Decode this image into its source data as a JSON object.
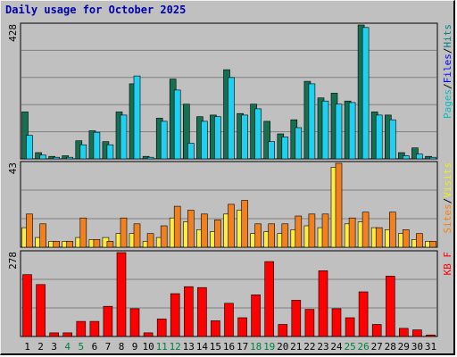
{
  "chart_data": {
    "type": "bar",
    "title": "Daily usage for October 2025",
    "month": "October 2025",
    "x": [
      "1",
      "2",
      "3",
      "4",
      "5",
      "6",
      "7",
      "8",
      "9",
      "10",
      "11",
      "12",
      "13",
      "14",
      "15",
      "16",
      "17",
      "18",
      "19",
      "20",
      "21",
      "22",
      "23",
      "24",
      "25",
      "26",
      "27",
      "28",
      "29",
      "30",
      "31"
    ],
    "weekend_days": [
      "4",
      "5",
      "11",
      "12",
      "18",
      "19",
      "25",
      "26"
    ],
    "panels": [
      {
        "name": "hits-files-pages",
        "ymax_label": "428",
        "ymax": 428,
        "ylabel_parts": [
          {
            "text": "Pages",
            "color": "#00c0c0"
          },
          {
            "text": "/",
            "color": "#000000"
          },
          {
            "text": "Files",
            "color": "#0000ff"
          },
          {
            "text": "/",
            "color": "#000000"
          },
          {
            "text": "Hits",
            "color": "#008080"
          }
        ],
        "series": [
          {
            "name": "Hits",
            "color": "#147050",
            "values": [
              150,
              20,
              8,
              10,
              58,
              90,
              55,
              150,
              240,
              8,
              130,
              255,
              175,
              135,
              140,
              285,
              145,
              175,
              120,
              80,
              125,
              248,
              195,
              210,
              185,
              428,
              150,
              140,
              20,
              35,
              8
            ]
          },
          {
            "name": "Files",
            "color": "#20d0f0",
            "values": [
              75,
              12,
              5,
              5,
              45,
              85,
              45,
              140,
              265,
              5,
              120,
              220,
              50,
              120,
              135,
              260,
              140,
              160,
              55,
              70,
              100,
              240,
              185,
              175,
              180,
              420,
              140,
              125,
              10,
              15,
              5
            ]
          }
        ]
      },
      {
        "name": "visits-sites",
        "ymax_label": "43",
        "ymax": 43,
        "ylabel_parts": [
          {
            "text": "Sites",
            "color": "#ff8000"
          },
          {
            "text": "/",
            "color": "#000000"
          },
          {
            "text": "Visits",
            "color": "#f0f000"
          }
        ],
        "series": [
          {
            "name": "Visits",
            "color": "#ffee40",
            "values": [
              10,
              5,
              3,
              3,
              5,
              4,
              5,
              7,
              7,
              3,
              5,
              15,
              13,
              9,
              8,
              17,
              19,
              7,
              8,
              7,
              9,
              11,
              10,
              41,
              12,
              13,
              10,
              9,
              7,
              4,
              3
            ]
          },
          {
            "name": "Sites",
            "color": "#f08020",
            "values": [
              17,
              12,
              3,
              3,
              15,
              4,
              3,
              15,
              12,
              7,
              11,
              21,
              19,
              17,
              14,
              22,
              24,
              12,
              12,
              12,
              16,
              17,
              17,
              43,
              15,
              18,
              10,
              18,
              9,
              7,
              3
            ]
          }
        ]
      },
      {
        "name": "kbytes",
        "ymax_label": "278",
        "ymax": 278,
        "ylabel_parts": [
          {
            "text": "KB F",
            "color": "#ff0000"
          }
        ],
        "series": [
          {
            "name": "KB F",
            "color": "#ff0000",
            "values": [
              205,
              172,
              12,
              12,
              50,
              50,
              100,
              278,
              92,
              12,
              58,
              142,
              165,
              162,
              52,
              110,
              62,
              138,
              248,
              40,
              120,
              90,
              218,
              92,
              62,
              148,
              40,
              200,
              27,
              22,
              5
            ]
          }
        ]
      }
    ]
  }
}
